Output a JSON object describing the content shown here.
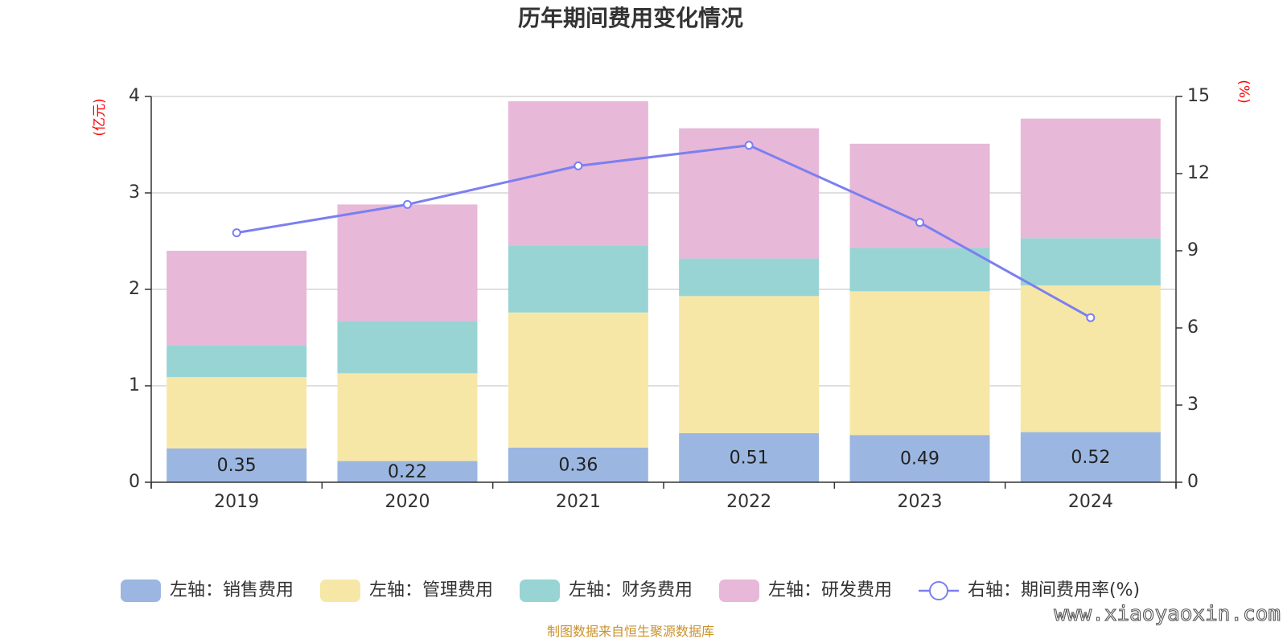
{
  "chart_data": {
    "type": "bar",
    "title": "历年期间费用变化情况",
    "categories": [
      "2019",
      "2020",
      "2021",
      "2022",
      "2023",
      "2024"
    ],
    "y_left": {
      "unit": "(亿元)",
      "ylim": [
        0,
        4
      ],
      "ticks": [
        "0",
        "1",
        "2",
        "3",
        "4"
      ]
    },
    "y_right": {
      "unit": "(%)",
      "ylim": [
        0,
        15
      ],
      "ticks": [
        "0",
        "3",
        "6",
        "9",
        "12",
        "15"
      ]
    },
    "series": [
      {
        "name": "左轴：销售费用",
        "axis": "left",
        "kind": "stacked-bar",
        "color": "#9bb7e1",
        "values": [
          0.35,
          0.22,
          0.36,
          0.51,
          0.49,
          0.52
        ],
        "labels": [
          "0.35",
          "0.22",
          "0.36",
          "0.51",
          "0.49",
          "0.52"
        ]
      },
      {
        "name": "左轴：管理费用",
        "axis": "left",
        "kind": "stacked-bar",
        "color": "#f7e7a7",
        "values": [
          0.74,
          0.91,
          1.4,
          1.42,
          1.49,
          1.52
        ]
      },
      {
        "name": "左轴：财务费用",
        "axis": "left",
        "kind": "stacked-bar",
        "color": "#98d4d4",
        "values": [
          0.33,
          0.54,
          0.69,
          0.39,
          0.45,
          0.49
        ]
      },
      {
        "name": "左轴：研发费用",
        "axis": "left",
        "kind": "stacked-bar",
        "color": "#e7b8d8",
        "values": [
          0.98,
          1.21,
          1.5,
          1.35,
          1.08,
          1.24
        ]
      },
      {
        "name": "右轴：期间费用率(%)",
        "axis": "right",
        "kind": "line",
        "color": "#7b7ff0",
        "values": [
          9.7,
          10.8,
          12.3,
          13.1,
          10.1,
          6.4
        ]
      }
    ],
    "grid": true,
    "legend": "bottom"
  },
  "source_note": "制图数据来自恒生聚源数据库",
  "watermark": "www.xiaoyaoxin.com"
}
